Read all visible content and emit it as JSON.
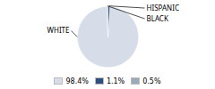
{
  "chart_data": {
    "type": "pie",
    "categories": [
      "WHITE",
      "HISPANIC",
      "BLACK"
    ],
    "values": [
      98.4,
      1.1,
      0.5
    ],
    "value_labels": [
      "98.4%",
      "1.1%",
      "0.5%"
    ],
    "colors": [
      "#d6dde8",
      "#2d5080",
      "#9baab8"
    ],
    "legend": "bottom"
  }
}
